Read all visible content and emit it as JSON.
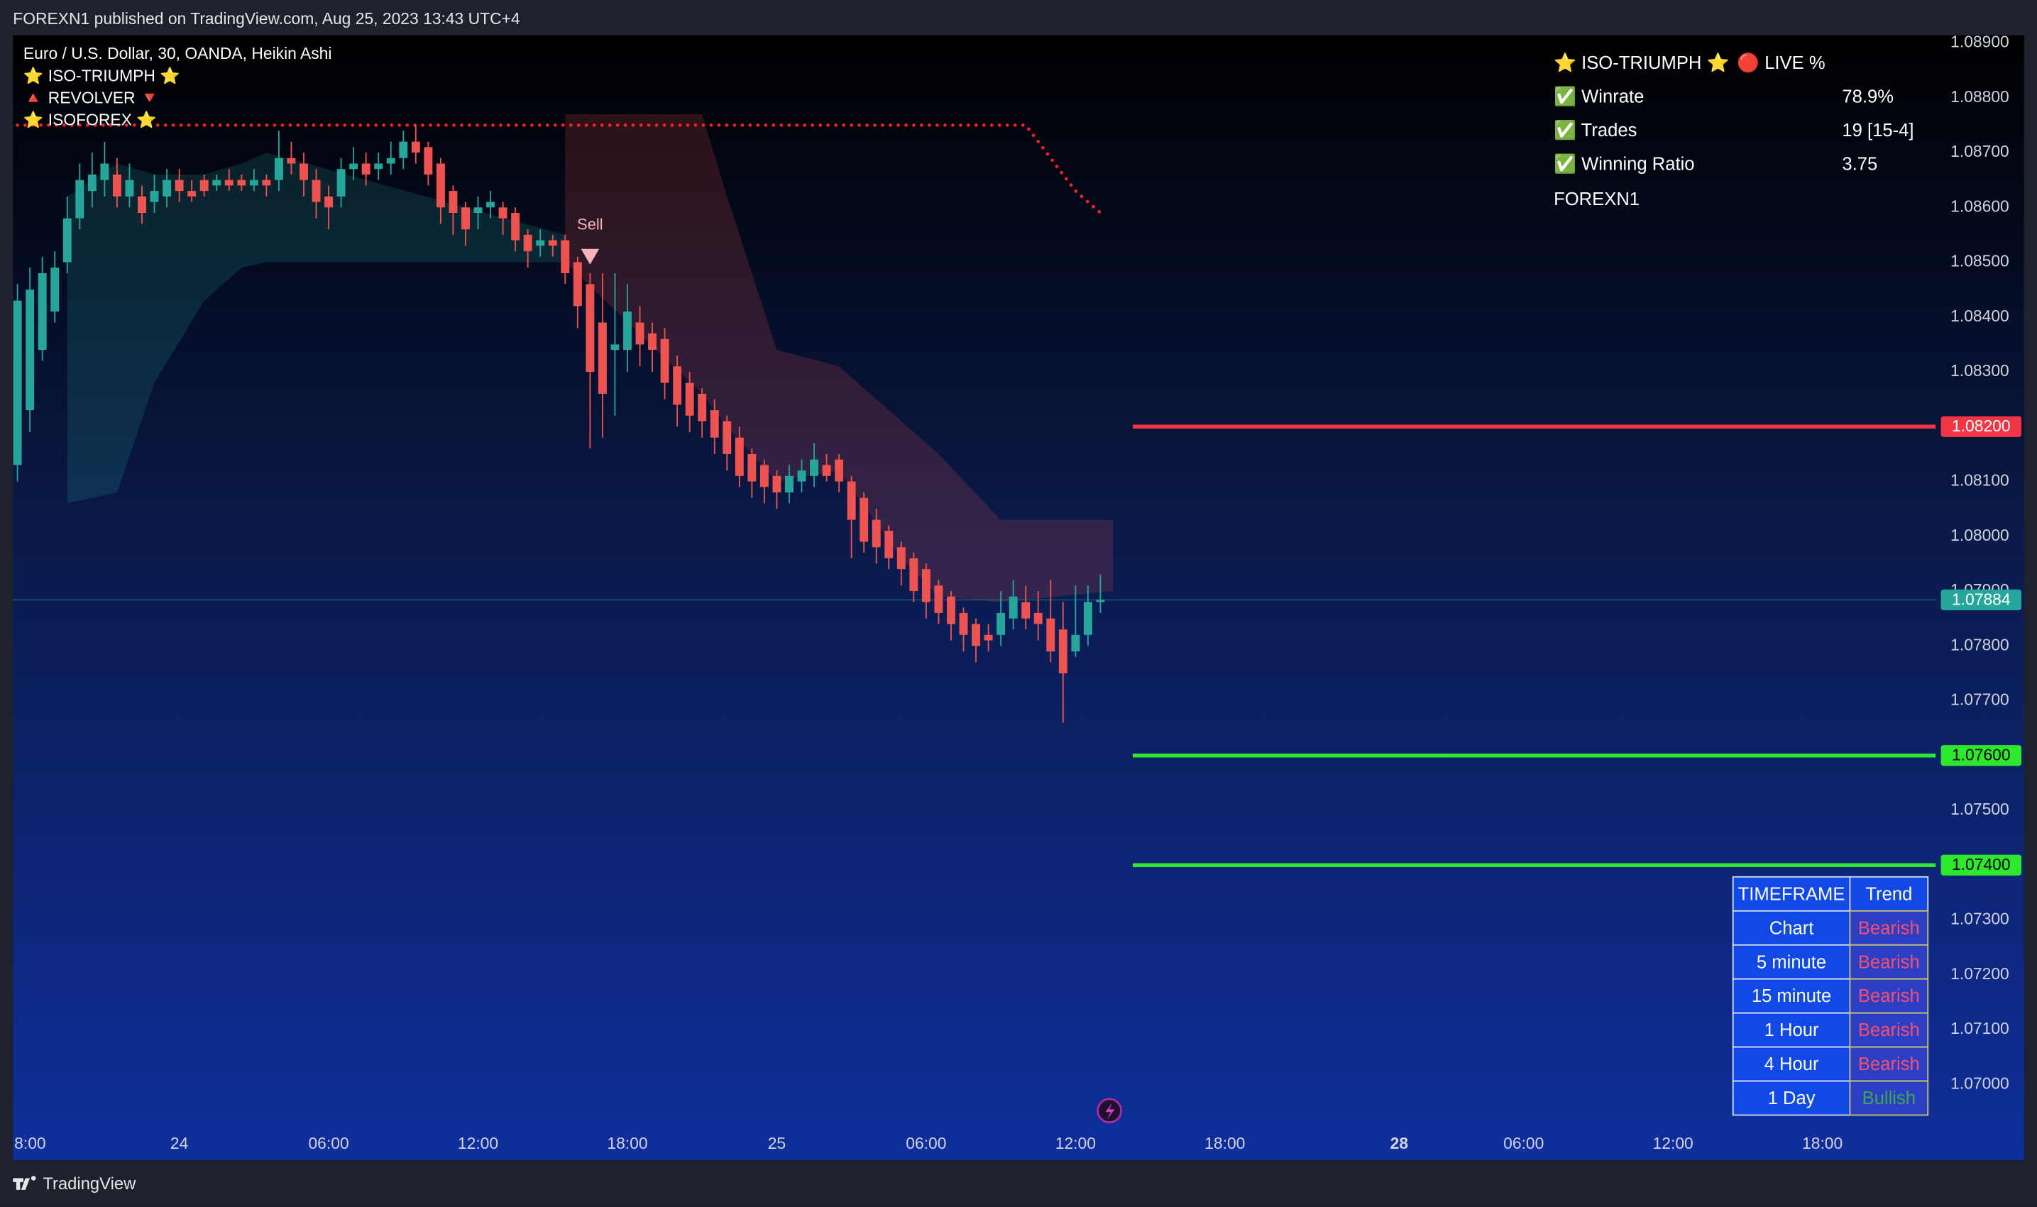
{
  "header": {
    "title": "FOREXN1 published on TradingView.com, Aug 25, 2023 13:43 UTC+4"
  },
  "footer": {
    "brand": "TradingView"
  },
  "chart_data": {
    "type": "candlestick",
    "legend_lines": [
      "Euro / U.S. Dollar, 30, OANDA, Heikin Ashi",
      "⭐ ISO-TRIUMPH ⭐",
      "🔺 REVOLVER 🔻",
      "⭐ ISOFOREX ⭐"
    ],
    "up_color": "#26a69a",
    "down_color": "#ef5350",
    "x": [
      -1,
      0,
      1,
      2,
      3,
      4,
      5,
      6,
      7,
      8,
      9,
      10,
      11,
      12,
      13,
      14,
      15,
      16,
      17,
      18,
      19,
      20,
      21,
      22,
      23,
      24,
      25,
      26,
      27,
      28,
      29,
      30,
      31,
      32,
      33,
      34,
      35,
      36,
      37,
      38,
      39,
      40,
      41,
      42,
      43,
      44,
      45,
      46,
      47,
      48,
      49,
      50,
      51,
      52,
      53,
      54,
      55,
      56,
      57,
      58,
      59,
      60,
      61,
      62,
      63,
      64,
      65,
      66,
      67,
      68,
      69,
      70,
      71,
      72,
      73,
      74,
      75,
      76,
      77,
      78,
      79,
      80,
      81,
      82,
      83,
      84,
      85,
      86
    ],
    "open": [
      1.0813,
      1.0823,
      1.0834,
      1.0841,
      1.085,
      1.0858,
      1.0863,
      1.0865,
      1.0866,
      1.0862,
      1.0862,
      1.0861,
      1.0862,
      1.0865,
      1.0863,
      1.0865,
      1.0864,
      1.0865,
      1.0865,
      1.0864,
      1.0865,
      1.0865,
      1.0869,
      1.0868,
      1.0865,
      1.0862,
      1.0862,
      1.0867,
      1.0868,
      1.0867,
      1.0868,
      1.0869,
      1.0872,
      1.0871,
      1.0868,
      1.0863,
      1.086,
      1.0859,
      1.086,
      1.086,
      1.0859,
      1.0855,
      1.0853,
      1.0854,
      1.0854,
      1.085,
      1.0846,
      1.0839,
      1.0834,
      1.0834,
      1.0839,
      1.0837,
      1.0836,
      1.0831,
      1.0828,
      1.0826,
      1.0823,
      1.0821,
      1.0818,
      1.0815,
      1.0813,
      1.0811,
      1.0808,
      1.081,
      1.0811,
      1.0813,
      1.0814,
      1.081,
      1.0807,
      1.0803,
      1.0801,
      1.0798,
      1.0796,
      1.0794,
      1.0791,
      1.0789,
      1.0786,
      1.0784,
      1.0782,
      1.0782,
      1.0785,
      1.0788,
      1.0786,
      1.0785,
      1.0783,
      1.0779,
      1.0782,
      1.0788
    ],
    "high": [
      1.0846,
      1.0849,
      1.0851,
      1.0852,
      1.0862,
      1.0868,
      1.087,
      1.0872,
      1.0869,
      1.0868,
      1.0864,
      1.0866,
      1.0867,
      1.0867,
      1.0865,
      1.0866,
      1.0866,
      1.0867,
      1.0866,
      1.0867,
      1.0866,
      1.0874,
      1.0872,
      1.087,
      1.0867,
      1.0864,
      1.0869,
      1.0871,
      1.087,
      1.087,
      1.0872,
      1.0874,
      1.0875,
      1.0872,
      1.0869,
      1.0864,
      1.0861,
      1.0862,
      1.0863,
      1.0861,
      1.086,
      1.0856,
      1.0856,
      1.0855,
      1.0855,
      1.0851,
      1.0848,
      1.0848,
      1.0848,
      1.0846,
      1.0842,
      1.0839,
      1.0838,
      1.0833,
      1.083,
      1.0827,
      1.0825,
      1.0822,
      1.082,
      1.0816,
      1.0814,
      1.0812,
      1.0813,
      1.0814,
      1.0817,
      1.0815,
      1.0815,
      1.0811,
      1.0808,
      1.0805,
      1.0802,
      1.0799,
      1.0797,
      1.0795,
      1.0792,
      1.079,
      1.0787,
      1.0785,
      1.0784,
      1.079,
      1.0792,
      1.0791,
      1.079,
      1.0792,
      1.0788,
      1.0791,
      1.0791,
      1.0793
    ],
    "low": [
      1.081,
      1.0819,
      1.0832,
      1.0839,
      1.0848,
      1.0856,
      1.086,
      1.0862,
      1.086,
      1.086,
      1.0857,
      1.0859,
      1.086,
      1.0861,
      1.0861,
      1.0862,
      1.0863,
      1.0863,
      1.0863,
      1.0863,
      1.0862,
      1.0863,
      1.0866,
      1.0862,
      1.0858,
      1.0856,
      1.086,
      1.0865,
      1.0864,
      1.0865,
      1.0866,
      1.0867,
      1.0868,
      1.0864,
      1.0857,
      1.0855,
      1.0853,
      1.0856,
      1.0858,
      1.0855,
      1.0852,
      1.0849,
      1.0851,
      1.0851,
      1.0846,
      1.0838,
      1.0816,
      1.0818,
      1.0822,
      1.083,
      1.0831,
      1.083,
      1.0825,
      1.082,
      1.0819,
      1.0818,
      1.0815,
      1.0812,
      1.0809,
      1.0807,
      1.0806,
      1.0805,
      1.0806,
      1.0808,
      1.0809,
      1.081,
      1.0808,
      1.0796,
      1.0797,
      1.0795,
      1.0794,
      1.0791,
      1.0788,
      1.0785,
      1.0784,
      1.0781,
      1.0779,
      1.0777,
      1.0779,
      1.078,
      1.0783,
      1.0783,
      1.0781,
      1.0777,
      1.0766,
      1.0778,
      1.078,
      1.0786
    ],
    "close": [
      1.0843,
      1.0845,
      1.0848,
      1.0849,
      1.0858,
      1.0865,
      1.0866,
      1.0868,
      1.0862,
      1.0865,
      1.0859,
      1.0863,
      1.0865,
      1.0863,
      1.0862,
      1.0863,
      1.0865,
      1.0864,
      1.0864,
      1.0865,
      1.0864,
      1.0869,
      1.0868,
      1.0865,
      1.0861,
      1.086,
      1.0867,
      1.0868,
      1.0866,
      1.0868,
      1.0869,
      1.0872,
      1.087,
      1.0866,
      1.086,
      1.0859,
      1.0856,
      1.086,
      1.0861,
      1.0858,
      1.0854,
      1.0852,
      1.0854,
      1.0853,
      1.0848,
      1.0842,
      1.083,
      1.0826,
      1.0835,
      1.0841,
      1.0835,
      1.0834,
      1.0828,
      1.0824,
      1.0822,
      1.0821,
      1.0818,
      1.0815,
      1.0811,
      1.081,
      1.0809,
      1.0808,
      1.0811,
      1.0812,
      1.0814,
      1.0811,
      1.081,
      1.0803,
      1.0799,
      1.0798,
      1.0796,
      1.0794,
      1.079,
      1.0788,
      1.0786,
      1.0784,
      1.0782,
      1.078,
      1.0781,
      1.0786,
      1.0789,
      1.0785,
      1.0784,
      1.0779,
      1.0775,
      1.0782,
      1.0788,
      1.07884
    ],
    "bands": [
      {
        "color": "rgba(38,166,154,0.18)",
        "x": [
          3,
          7,
          10,
          14,
          17,
          19,
          43
        ],
        "upper": [
          1.0862,
          1.0868,
          1.0866,
          1.0866,
          1.0868,
          1.087,
          1.0855
        ],
        "lower": [
          1.0806,
          1.0808,
          1.0828,
          1.0843,
          1.0849,
          1.085,
          1.085
        ]
      },
      {
        "color": "rgba(239,83,80,0.18)",
        "x": [
          43,
          54,
          56,
          60,
          65,
          70,
          73,
          78,
          87
        ],
        "upper": [
          1.0877,
          1.0877,
          1.0862,
          1.0834,
          1.0831,
          1.0821,
          1.0815,
          1.0803,
          1.0803
        ],
        "lower": [
          1.085,
          1.0826,
          1.082,
          1.081,
          1.0812,
          1.0796,
          1.0789,
          1.0788,
          1.079
        ]
      }
    ],
    "stop_line": {
      "color": "#ff1e2d",
      "x": [
        -1,
        80,
        81,
        82,
        83,
        84,
        85,
        86
      ],
      "values": [
        1.0875,
        1.0875,
        1.0872,
        1.0869,
        1.0866,
        1.0863,
        1.0861,
        1.0859
      ]
    },
    "signals": [
      {
        "label": "Sell",
        "x": 45,
        "value": 1.0851,
        "color": "#f7b3b5"
      }
    ],
    "levels": [
      {
        "value": 1.082,
        "label": "1.08200",
        "color": "#f23645",
        "from_x": 88.6
      },
      {
        "value": 1.076,
        "label": "1.07600",
        "color": "#2ee82e",
        "from_x": 88.6
      },
      {
        "value": 1.074,
        "label": "1.07400",
        "color": "#2ee82e",
        "from_x": 88.6
      }
    ],
    "last_price": {
      "value": 1.07884,
      "label": "1.07884",
      "color": "#26a69a"
    },
    "xlim": [
      -1.36,
      153.1
    ],
    "xticks": [
      {
        "value": 0,
        "label": "8:00"
      },
      {
        "value": 12,
        "label": "24"
      },
      {
        "value": 24,
        "label": "06:00"
      },
      {
        "value": 36,
        "label": "12:00"
      },
      {
        "value": 48,
        "label": "18:00"
      },
      {
        "value": 60,
        "label": "25"
      },
      {
        "value": 72,
        "label": "06:00"
      },
      {
        "value": 84,
        "label": "12:00"
      },
      {
        "value": 96,
        "label": "18:00"
      },
      {
        "value": 110,
        "label": "28"
      },
      {
        "value": 120,
        "label": "06:00"
      },
      {
        "value": 132,
        "label": "12:00"
      },
      {
        "value": 144,
        "label": "18:00"
      }
    ],
    "ylim": [
      1.06862,
      1.08914
    ],
    "yticks": [
      {
        "value": 1.089,
        "label": "1.08900"
      },
      {
        "value": 1.088,
        "label": "1.08800"
      },
      {
        "value": 1.087,
        "label": "1.08700"
      },
      {
        "value": 1.086,
        "label": "1.08600"
      },
      {
        "value": 1.085,
        "label": "1.08500"
      },
      {
        "value": 1.084,
        "label": "1.08400"
      },
      {
        "value": 1.083,
        "label": "1.08300"
      },
      {
        "value": 1.082,
        "label": "1.08200"
      },
      {
        "value": 1.081,
        "label": "1.08100"
      },
      {
        "value": 1.08,
        "label": "1.08000"
      },
      {
        "value": 1.079,
        "label": "1.07900"
      },
      {
        "value": 1.078,
        "label": "1.07800"
      },
      {
        "value": 1.077,
        "label": "1.07700"
      },
      {
        "value": 1.076,
        "label": "1.07600"
      },
      {
        "value": 1.075,
        "label": "1.07500"
      },
      {
        "value": 1.074,
        "label": "1.07400"
      },
      {
        "value": 1.073,
        "label": "1.07300"
      },
      {
        "value": 1.072,
        "label": "1.07200"
      },
      {
        "value": 1.071,
        "label": "1.07100"
      },
      {
        "value": 1.07,
        "label": "1.07000"
      }
    ],
    "grid": false,
    "stats_table": {
      "title": [
        "⭐ ISO-TRIUMPH ⭐",
        "🔴 LIVE %"
      ],
      "rows": [
        [
          "✅ Winrate",
          "78.9%"
        ],
        [
          "✅ Trades",
          "19 [15-4]"
        ],
        [
          "✅ Winning Ratio",
          "3.75"
        ]
      ],
      "footer": "FOREXN1"
    },
    "trend_table": {
      "header": [
        "TIMEFRAME",
        "Trend"
      ],
      "rows": [
        [
          "Chart",
          "Bearish"
        ],
        [
          "5 minute",
          "Bearish"
        ],
        [
          "15 minute",
          "Bearish"
        ],
        [
          "1 Hour",
          "Bearish"
        ],
        [
          "4 Hour",
          "Bearish"
        ],
        [
          "1 Day",
          "Bullish"
        ]
      ]
    }
  }
}
